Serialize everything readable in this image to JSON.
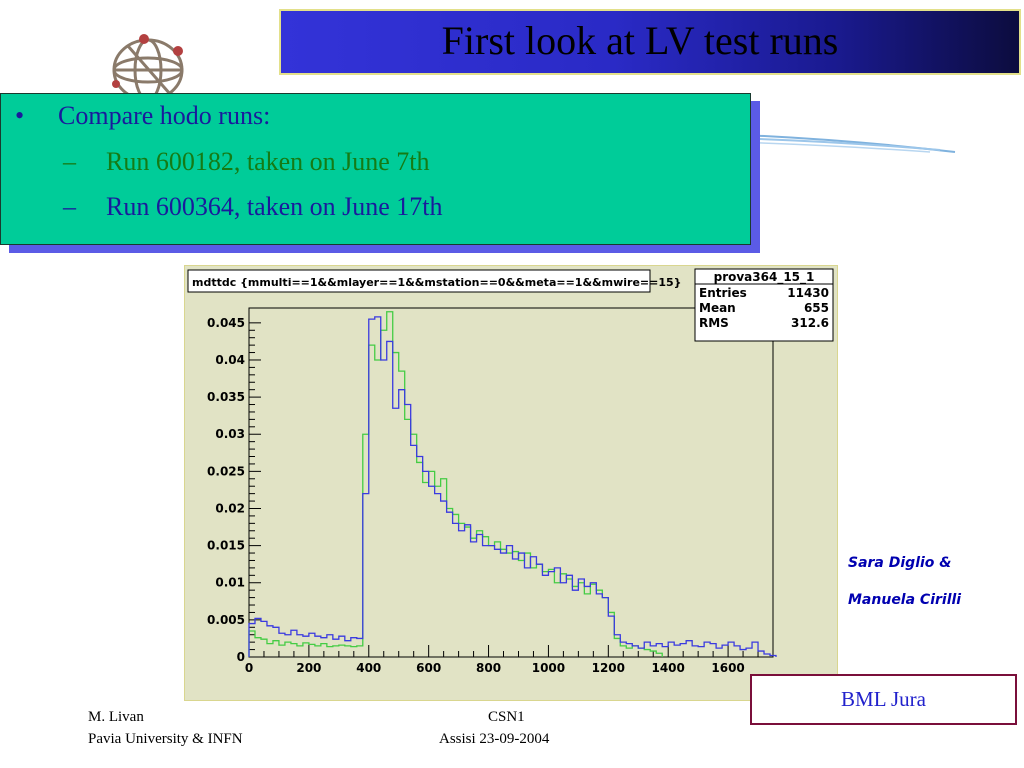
{
  "slide": {
    "title": "First look at LV test runs",
    "bullets": [
      {
        "marker": "•",
        "text": "Compare hodo runs:",
        "color": "#1a1a9c"
      },
      {
        "marker": "–",
        "text": "Run 600182, taken on June 7th",
        "color": "#157b15"
      },
      {
        "marker": "–",
        "text": "Run 600364, taken on June 17th",
        "color": "#1a1a9c"
      }
    ],
    "authors": [
      "Sara Diglio &",
      "Manuela Cirilli"
    ],
    "label_box": "BML Jura",
    "footer": {
      "left_line1": "M. Livan",
      "left_line2": "Pavia University & INFN",
      "center_line1": "CSN1",
      "center_line2": "Assisi 23-09-2004"
    },
    "colors": {
      "title_bar": "#2a2ac6",
      "bullet_box": "#00cc99",
      "plot_background": "#e1e3c5",
      "series_blue": "#3a3ae0",
      "series_green": "#44cc44"
    }
  },
  "chart_data": {
    "type": "line",
    "title": "mdttdc {mmulti==1&&mlayer==1&&mstation==0&&meta==1&&mwire==15}",
    "xlim": [
      0,
      1750
    ],
    "ylim": [
      0,
      0.047
    ],
    "x_ticks": [
      0,
      200,
      400,
      600,
      800,
      1000,
      1200,
      1400,
      1600
    ],
    "x_tick_labels": [
      "0",
      "200",
      "400",
      "600",
      "800",
      "1000",
      "1200",
      "1400",
      "1600"
    ],
    "y_ticks": [
      0,
      0.005,
      0.01,
      0.015,
      0.02,
      0.025,
      0.03,
      0.035,
      0.04,
      0.045
    ],
    "y_tick_labels": [
      "0",
      "0.005",
      "0.01",
      "0.015",
      "0.02",
      "0.025",
      "0.03",
      "0.035",
      "0.04",
      "0.045"
    ],
    "stats_box": {
      "name": "prova364_15_1",
      "rows": [
        {
          "label": "Entries",
          "value": "11430"
        },
        {
          "label": "Mean",
          "value": "655"
        },
        {
          "label": "RMS",
          "value": "312.6"
        }
      ]
    },
    "bin_width": 20,
    "series": [
      {
        "color": "#3a3ae0",
        "x": [
          0,
          20,
          40,
          60,
          80,
          100,
          120,
          140,
          160,
          180,
          200,
          220,
          240,
          260,
          280,
          300,
          320,
          340,
          360,
          380,
          400,
          420,
          440,
          460,
          480,
          500,
          520,
          540,
          560,
          580,
          600,
          620,
          640,
          660,
          680,
          700,
          720,
          740,
          760,
          780,
          800,
          820,
          840,
          860,
          880,
          900,
          920,
          940,
          960,
          980,
          1000,
          1020,
          1040,
          1060,
          1080,
          1100,
          1120,
          1140,
          1160,
          1180,
          1200,
          1220,
          1240,
          1260,
          1280,
          1300,
          1320,
          1340,
          1360,
          1380,
          1400,
          1420,
          1440,
          1460,
          1480,
          1500,
          1520,
          1540,
          1560,
          1580,
          1600,
          1620,
          1640,
          1660,
          1680,
          1700,
          1720,
          1740
        ],
        "values": [
          0.0045,
          0.0052,
          0.0048,
          0.0042,
          0.004,
          0.0032,
          0.003,
          0.0036,
          0.003,
          0.0028,
          0.0032,
          0.0028,
          0.0026,
          0.003,
          0.0024,
          0.0028,
          0.0022,
          0.0026,
          0.0025,
          0.022,
          0.0455,
          0.0458,
          0.04,
          0.0425,
          0.0335,
          0.036,
          0.034,
          0.0285,
          0.027,
          0.025,
          0.023,
          0.022,
          0.021,
          0.0195,
          0.018,
          0.017,
          0.0178,
          0.0155,
          0.0165,
          0.015,
          0.015,
          0.0145,
          0.014,
          0.015,
          0.0132,
          0.014,
          0.012,
          0.0135,
          0.0125,
          0.011,
          0.0115,
          0.012,
          0.01,
          0.011,
          0.009,
          0.0105,
          0.0095,
          0.01,
          0.0085,
          0.008,
          0.0055,
          0.003,
          0.002,
          0.0018,
          0.0015,
          0.0012,
          0.002,
          0.0015,
          0.0018,
          0.0014,
          0.002,
          0.0016,
          0.0018,
          0.0022,
          0.0015,
          0.0014,
          0.002,
          0.0018,
          0.0012,
          0.0016,
          0.002,
          0.0015,
          0.001,
          0.0012,
          0.002,
          0.0008,
          0.0004,
          0.0002
        ]
      },
      {
        "color": "#44cc44",
        "x": [
          0,
          20,
          40,
          60,
          80,
          100,
          120,
          140,
          160,
          180,
          200,
          220,
          240,
          260,
          280,
          300,
          320,
          340,
          360,
          380,
          400,
          420,
          440,
          460,
          480,
          500,
          520,
          540,
          560,
          580,
          600,
          620,
          640,
          660,
          680,
          700,
          720,
          740,
          760,
          780,
          800,
          820,
          840,
          860,
          880,
          900,
          920,
          940,
          960,
          980,
          1000,
          1020,
          1040,
          1060,
          1080,
          1100,
          1120,
          1140,
          1160,
          1180,
          1200,
          1220,
          1240,
          1260,
          1280,
          1300,
          1320,
          1340,
          1360
        ],
        "values": [
          0.0035,
          0.0026,
          0.0024,
          0.0018,
          0.0022,
          0.0016,
          0.002,
          0.0018,
          0.0015,
          0.0019,
          0.0017,
          0.0015,
          0.0018,
          0.0014,
          0.0015,
          0.0016,
          0.0015,
          0.0014,
          0.0015,
          0.03,
          0.042,
          0.04,
          0.044,
          0.0465,
          0.041,
          0.0385,
          0.032,
          0.03,
          0.0262,
          0.0235,
          0.025,
          0.023,
          0.024,
          0.02,
          0.0192,
          0.018,
          0.0175,
          0.016,
          0.017,
          0.0162,
          0.015,
          0.0155,
          0.0145,
          0.014,
          0.0142,
          0.013,
          0.014,
          0.012,
          0.0125,
          0.0115,
          0.0118,
          0.01,
          0.0112,
          0.0105,
          0.0095,
          0.01,
          0.0085,
          0.0098,
          0.009,
          0.008,
          0.006,
          0.0025,
          0.0015,
          0.0012,
          0.0015,
          0.0012,
          0.001,
          0.0008,
          0.0005
        ]
      }
    ],
    "grid": false,
    "legend": "none"
  }
}
